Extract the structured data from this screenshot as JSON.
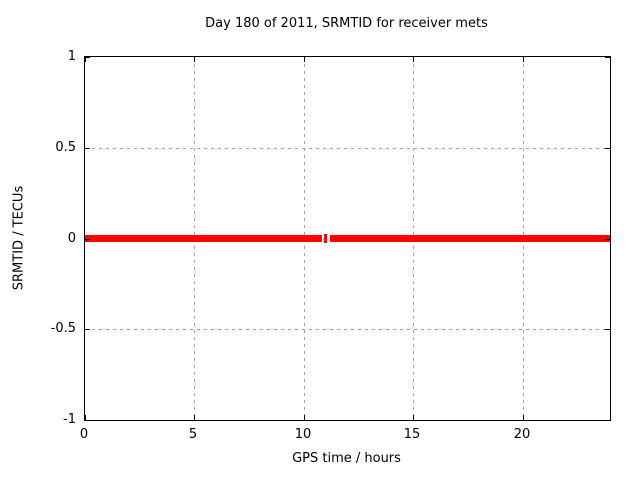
{
  "chart_data": {
    "type": "line",
    "title": "Day 180 of 2011, SRMTID for receiver mets",
    "xlabel": "GPS time / hours",
    "ylabel": "SRMTID / TECUs",
    "xlim": [
      0,
      24
    ],
    "ylim": [
      -1,
      1
    ],
    "xticks": [
      0,
      5,
      10,
      15,
      20
    ],
    "xtick_labels": [
      "0",
      "5",
      "10",
      "15",
      "20"
    ],
    "yticks": [
      -1,
      -0.5,
      0,
      0.5,
      1
    ],
    "ytick_labels": [
      "-1",
      "-0.5",
      "0",
      "0.5",
      "1"
    ],
    "grid": true,
    "legend": "none",
    "series": [
      {
        "name": "SRMTID",
        "color": "#ff0000",
        "y_value": 0,
        "segments_x": [
          [
            0,
            10.85
          ],
          [
            11.2,
            24
          ]
        ],
        "gap_marker_x": 11.0
      }
    ],
    "colors": {
      "background": "#ffffff",
      "grid": "#a0a0a0",
      "axis": "#000000",
      "text": "#000000",
      "line": "#ff0000"
    }
  }
}
